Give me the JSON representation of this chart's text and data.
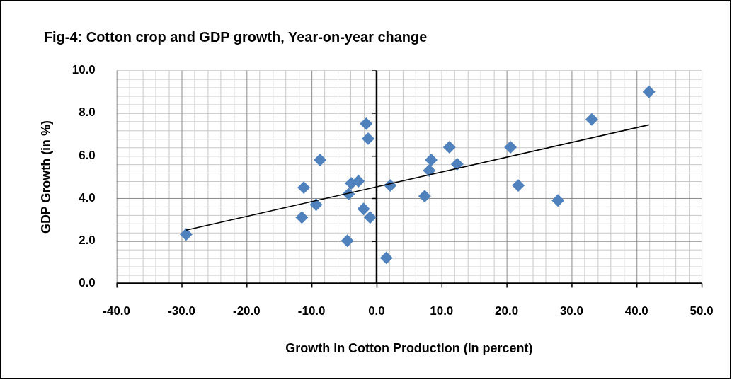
{
  "chart_data": {
    "type": "scatter",
    "title": "Fig-4: Cotton crop and GDP growth, Year-on-year change",
    "xlabel": "Growth in Cotton Production (in percent)",
    "ylabel": "GDP Growth (in %)",
    "xlim": [
      -40,
      50
    ],
    "xticks": [
      {
        "value": -40,
        "label": "-40.0"
      },
      {
        "value": -30,
        "label": "-30.0"
      },
      {
        "value": -20,
        "label": "-20.0"
      },
      {
        "value": -10,
        "label": "-10.0"
      },
      {
        "value": 0,
        "label": "0.0"
      },
      {
        "value": 10,
        "label": "10.0"
      },
      {
        "value": 20,
        "label": "20.0"
      },
      {
        "value": 30,
        "label": "30.0"
      },
      {
        "value": 40,
        "label": "40.0"
      },
      {
        "value": 50,
        "label": "50.0"
      }
    ],
    "ylim": [
      0,
      10
    ],
    "yticks": [
      {
        "value": 0,
        "label": "0.0"
      },
      {
        "value": 2,
        "label": "2.0"
      },
      {
        "value": 4,
        "label": "4.0"
      },
      {
        "value": 6,
        "label": "6.0"
      },
      {
        "value": 8,
        "label": "8.0"
      },
      {
        "value": 10,
        "label": "10.0"
      }
    ],
    "grid": true,
    "legend": false,
    "marker": "diamond",
    "series": [
      {
        "color": "#4f81bd",
        "x": [
          -29.3,
          -11.5,
          -11.2,
          -9.3,
          -8.7,
          -4.5,
          -4.3,
          -3.9,
          -2.8,
          -2.0,
          -1.0,
          -1.6,
          -1.3,
          1.5,
          2.1,
          7.4,
          8.1,
          8.4,
          11.2,
          12.4,
          20.6,
          21.8,
          27.9,
          33.1,
          41.9
        ],
        "values": [
          2.3,
          3.1,
          4.5,
          3.7,
          5.8,
          2.0,
          4.2,
          4.7,
          4.8,
          3.5,
          3.1,
          7.5,
          6.8,
          1.2,
          4.6,
          4.1,
          5.3,
          5.8,
          6.4,
          5.6,
          6.4,
          4.6,
          3.9,
          7.7,
          9.0
        ]
      },
      {
        "type": "line",
        "color": "#000000",
        "marker": "none",
        "x": [
          -29.3,
          41.9
        ],
        "values": [
          2.5,
          7.45
        ]
      }
    ]
  }
}
